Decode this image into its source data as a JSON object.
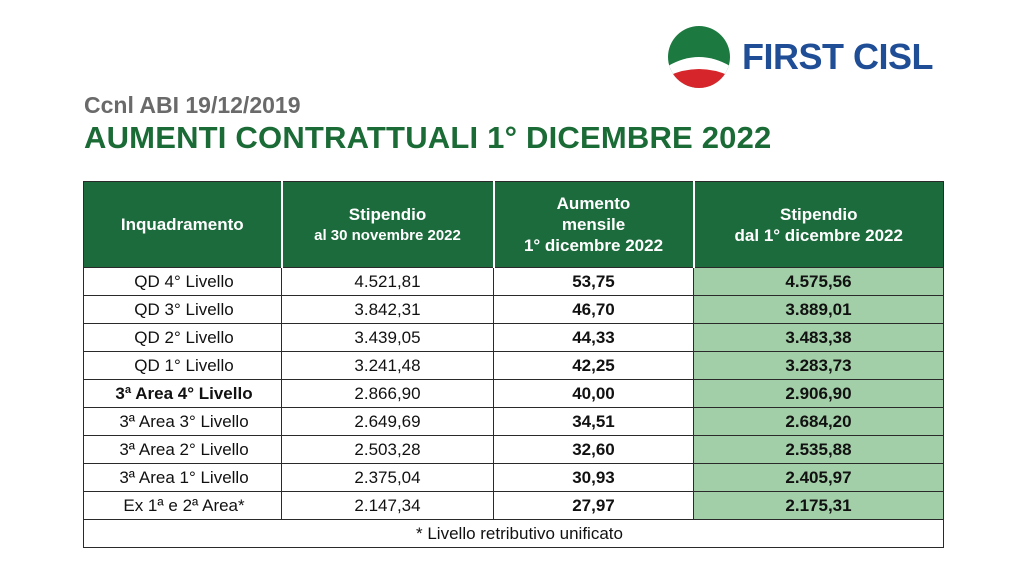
{
  "logo": {
    "text": "FIRST CISL"
  },
  "header": {
    "subtitle": "Ccnl ABI 19/12/2019",
    "title": "AUMENTI CONTRATTUALI 1° DICEMBRE 2022"
  },
  "table": {
    "headers": {
      "level": "Inquadramento",
      "salary_line1": "Stipendio",
      "salary_line2": "al 30 novembre 2022",
      "increase_line1": "Aumento",
      "increase_line2": "mensile",
      "increase_line3": "1° dicembre 2022",
      "new_line1": "Stipendio",
      "new_line2": "dal 1° dicembre 2022"
    },
    "rows": [
      {
        "level": "QD 4° Livello",
        "salary": "4.521,81",
        "increase": "53,75",
        "new_salary": "4.575,56"
      },
      {
        "level": "QD 3° Livello",
        "salary": "3.842,31",
        "increase": "46,70",
        "new_salary": "3.889,01"
      },
      {
        "level": "QD 2° Livello",
        "salary": "3.439,05",
        "increase": "44,33",
        "new_salary": "3.483,38"
      },
      {
        "level": "QD 1° Livello",
        "salary": "3.241,48",
        "increase": "42,25",
        "new_salary": "3.283,73"
      },
      {
        "level": "3ª Area 4° Livello",
        "salary": "2.866,90",
        "increase": "40,00",
        "new_salary": "2.906,90"
      },
      {
        "level": "3ª Area 3° Livello",
        "salary": "2.649,69",
        "increase": "34,51",
        "new_salary": "2.684,20"
      },
      {
        "level": "3ª Area 2° Livello",
        "salary": "2.503,28",
        "increase": "32,60",
        "new_salary": "2.535,88"
      },
      {
        "level": "3ª Area 1° Livello",
        "salary": "2.375,04",
        "increase": "30,93",
        "new_salary": "2.405,97"
      },
      {
        "level": "Ex 1ª e 2ª Area*",
        "salary": "2.147,34",
        "increase": "27,97",
        "new_salary": "2.175,31"
      }
    ],
    "footnote": "* Livello retributivo unificato"
  },
  "colors": {
    "header_green": "#1c6b3c",
    "title_green": "#1a6b35",
    "highlight_green": "#a2cfa7",
    "logo_blue": "#1f4e96"
  }
}
